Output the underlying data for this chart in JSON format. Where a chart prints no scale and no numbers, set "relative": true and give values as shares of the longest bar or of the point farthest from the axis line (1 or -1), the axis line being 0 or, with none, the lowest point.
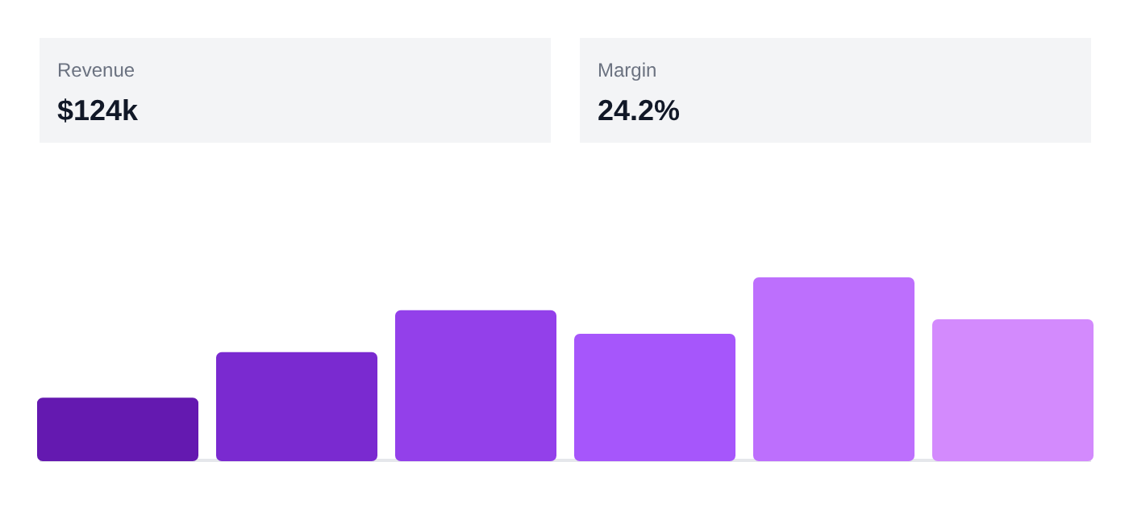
{
  "chart_data": [
    {
      "type": "other",
      "annotations": [
        "Revenue",
        "$124k",
        "Margin",
        "24.2%"
      ]
    },
    {
      "type": "bar",
      "relative": true,
      "categories": [
        null,
        null,
        null,
        null,
        null,
        null
      ],
      "values": [
        0.34,
        0.59,
        0.82,
        0.69,
        1,
        0.77
      ],
      "colors": [
        "#6419b0",
        "#7a2ad0",
        "#9340ea",
        "#a656fb",
        "#bd6ffd",
        "#d38afd"
      ]
    }
  ]
}
